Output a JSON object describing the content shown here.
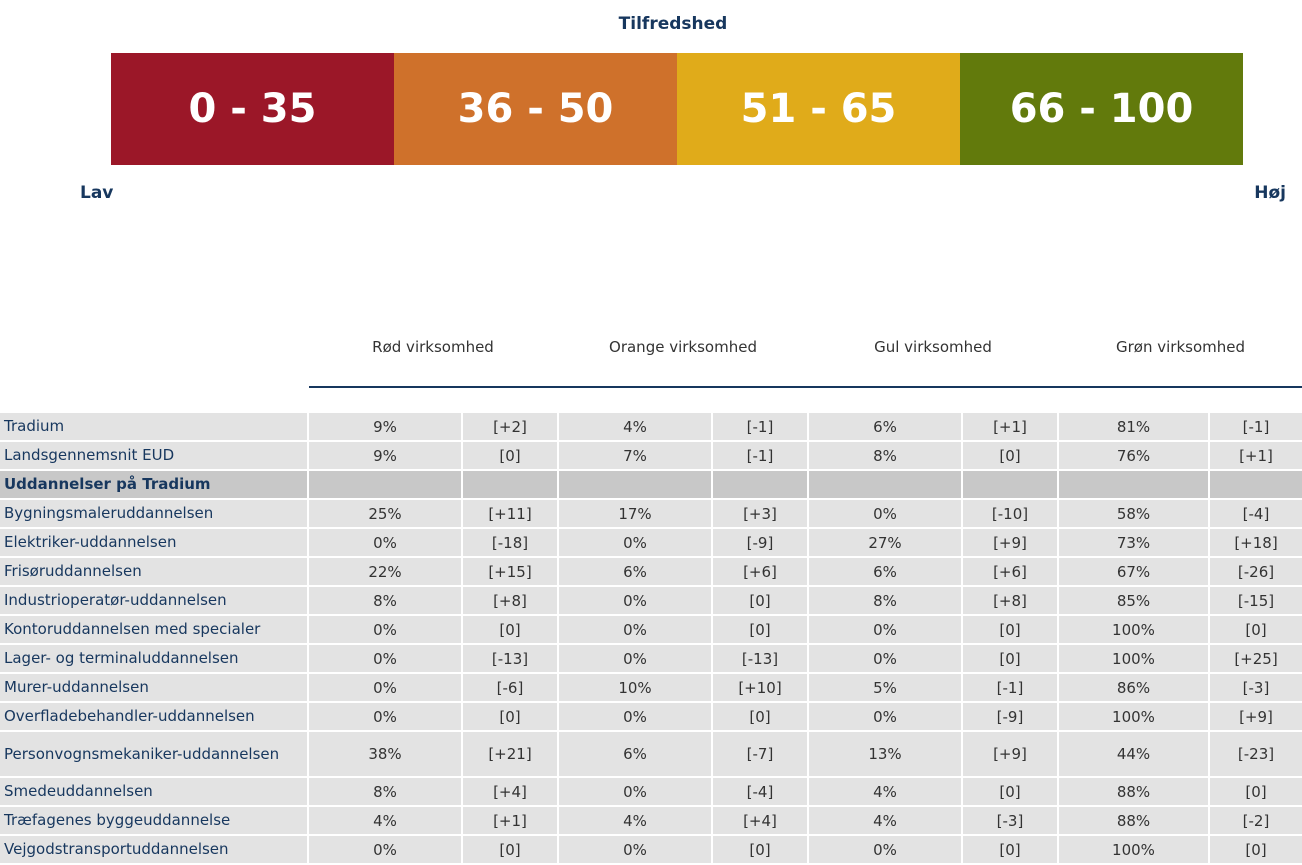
{
  "legend": {
    "title": "Tilfredshed",
    "segments": [
      {
        "label": "0 - 35",
        "color": "#9b1728"
      },
      {
        "label": "36 - 50",
        "color": "#cf712b"
      },
      {
        "label": "51 - 65",
        "color": "#e0ab1a"
      },
      {
        "label": "66 - 100",
        "color": "#627a0c"
      }
    ],
    "low": "Lav",
    "high": "Høj"
  },
  "table": {
    "columns": [
      "Rød virksomhed",
      "Orange virksomhed",
      "Gul virksomhed",
      "Grøn virksomhed"
    ],
    "rows": [
      {
        "label": "Tradium",
        "cells": [
          "9%",
          "[+2]",
          "4%",
          "[-1]",
          "6%",
          "[+1]",
          "81%",
          "[-1]"
        ]
      },
      {
        "label": "Landsgennemsnit EUD",
        "cells": [
          "9%",
          "[0]",
          "7%",
          "[-1]",
          "8%",
          "[0]",
          "76%",
          "[+1]"
        ]
      },
      {
        "label": "Uddannelser på Tradium",
        "section": true
      },
      {
        "label": "Bygningsmaleruddannelsen",
        "cells": [
          "25%",
          "[+11]",
          "17%",
          "[+3]",
          "0%",
          "[-10]",
          "58%",
          "[-4]"
        ]
      },
      {
        "label": "Elektriker-uddannelsen",
        "cells": [
          "0%",
          "[-18]",
          "0%",
          "[-9]",
          "27%",
          "[+9]",
          "73%",
          "[+18]"
        ]
      },
      {
        "label": "Frisøruddannelsen",
        "cells": [
          "22%",
          "[+15]",
          "6%",
          "[+6]",
          "6%",
          "[+6]",
          "67%",
          "[-26]"
        ]
      },
      {
        "label": "Industrioperatør-uddannelsen",
        "cells": [
          "8%",
          "[+8]",
          "0%",
          "[0]",
          "8%",
          "[+8]",
          "85%",
          "[-15]"
        ]
      },
      {
        "label": "Kontoruddannelsen med specialer",
        "cells": [
          "0%",
          "[0]",
          "0%",
          "[0]",
          "0%",
          "[0]",
          "100%",
          "[0]"
        ]
      },
      {
        "label": "Lager- og terminaluddannelsen",
        "cells": [
          "0%",
          "[-13]",
          "0%",
          "[-13]",
          "0%",
          "[0]",
          "100%",
          "[+25]"
        ]
      },
      {
        "label": "Murer-uddannelsen",
        "cells": [
          "0%",
          "[-6]",
          "10%",
          "[+10]",
          "5%",
          "[-1]",
          "86%",
          "[-3]"
        ]
      },
      {
        "label": "Overfladebehandler-uddannelsen",
        "cells": [
          "0%",
          "[0]",
          "0%",
          "[0]",
          "0%",
          "[-9]",
          "100%",
          "[+9]"
        ]
      },
      {
        "label": "Personvognsmekaniker-uddannelsen",
        "cells": [
          "38%",
          "[+21]",
          "6%",
          "[-7]",
          "13%",
          "[+9]",
          "44%",
          "[-23]"
        ]
      },
      {
        "label": "Smedeuddannelsen",
        "cells": [
          "8%",
          "[+4]",
          "0%",
          "[-4]",
          "4%",
          "[0]",
          "88%",
          "[0]"
        ]
      },
      {
        "label": "Træfagenes byggeuddannelse",
        "cells": [
          "4%",
          "[+1]",
          "4%",
          "[+4]",
          "4%",
          "[-3]",
          "88%",
          "[-2]"
        ]
      },
      {
        "label": "Vejgodstransportuddannelsen",
        "cells": [
          "0%",
          "[0]",
          "0%",
          "[0]",
          "0%",
          "[0]",
          "100%",
          "[0]"
        ]
      }
    ]
  }
}
